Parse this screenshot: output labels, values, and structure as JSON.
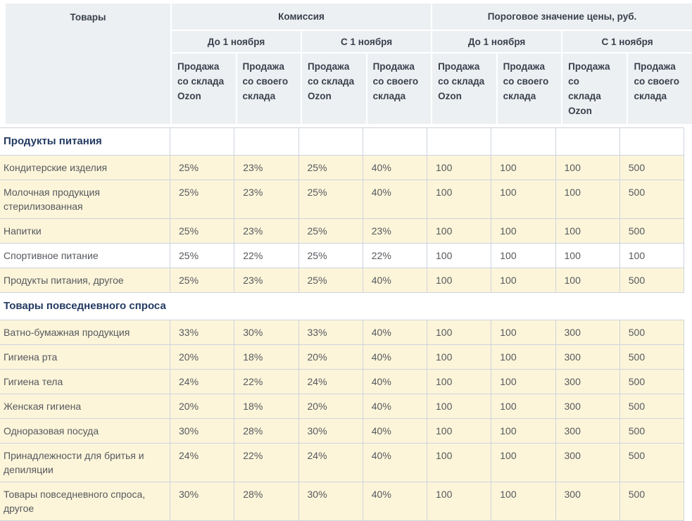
{
  "table": {
    "header": {
      "products": "Товары",
      "commission": "Комиссия",
      "price_threshold": "Пороговое значение цены, руб.",
      "period_before": "До 1 ноября",
      "period_from": "С 1 ноября",
      "sale_ozon_warehouse": "Продажа со склада Ozon",
      "sale_own_warehouse": "Продажа со своего склада"
    },
    "colors": {
      "header_bg": "#edf0f2",
      "header_text": "#39404d",
      "section_text": "#233a61",
      "body_text": "#55595e",
      "highlight_row_bg": "#fdf5da",
      "border": "#cdd4dd"
    },
    "sections": [
      {
        "title": "Продукты питания",
        "full_width_title": false,
        "rows": [
          {
            "name": "Кондитерские изделия",
            "highlight": true,
            "values": [
              "25%",
              "23%",
              "25%",
              "40%",
              "100",
              "100",
              "100",
              "500"
            ]
          },
          {
            "name": "Молочная продукция стерилизованная",
            "highlight": true,
            "values": [
              "25%",
              "23%",
              "25%",
              "40%",
              "100",
              "100",
              "100",
              "500"
            ]
          },
          {
            "name": "Напитки",
            "highlight": true,
            "values": [
              "25%",
              "23%",
              "25%",
              "23%",
              "100",
              "100",
              "100",
              "500"
            ]
          },
          {
            "name": "Спортивное питание",
            "highlight": false,
            "values": [
              "25%",
              "22%",
              "25%",
              "22%",
              "100",
              "100",
              "100",
              "100"
            ]
          },
          {
            "name": "Продукты питания, другое",
            "highlight": true,
            "values": [
              "25%",
              "23%",
              "25%",
              "40%",
              "100",
              "100",
              "100",
              "500"
            ]
          }
        ]
      },
      {
        "title": "Товары повседневного спроса",
        "full_width_title": true,
        "rows": [
          {
            "name": "Ватно-бумажная продукция",
            "highlight": true,
            "values": [
              "33%",
              "30%",
              "33%",
              "40%",
              "100",
              "100",
              "300",
              "500"
            ]
          },
          {
            "name": "Гигиена рта",
            "highlight": true,
            "values": [
              "20%",
              "18%",
              "20%",
              "40%",
              "100",
              "100",
              "300",
              "500"
            ]
          },
          {
            "name": "Гигиена тела",
            "highlight": true,
            "values": [
              "24%",
              "22%",
              "24%",
              "40%",
              "100",
              "100",
              "300",
              "500"
            ]
          },
          {
            "name": "Женская гигиена",
            "highlight": true,
            "values": [
              "20%",
              "18%",
              "20%",
              "40%",
              "100",
              "100",
              "300",
              "500"
            ]
          },
          {
            "name": "Одноразовая посуда",
            "highlight": true,
            "values": [
              "30%",
              "28%",
              "30%",
              "40%",
              "100",
              "100",
              "300",
              "500"
            ]
          },
          {
            "name": "Принадлежности для бритья и депиляции",
            "highlight": true,
            "values": [
              "24%",
              "22%",
              "24%",
              "40%",
              "100",
              "100",
              "300",
              "500"
            ]
          },
          {
            "name": "Товары повседневного спроса, другое",
            "highlight": true,
            "values": [
              "30%",
              "28%",
              "30%",
              "40%",
              "100",
              "100",
              "300",
              "500"
            ]
          }
        ]
      }
    ]
  }
}
